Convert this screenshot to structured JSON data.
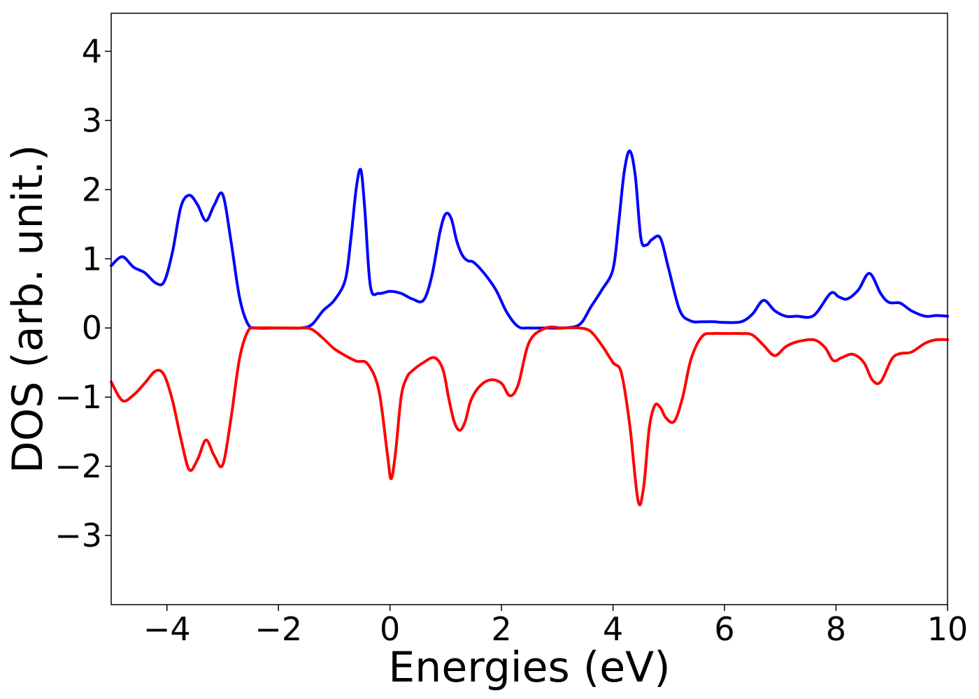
{
  "chart_data": {
    "type": "line",
    "title": "",
    "xlabel": "Energies (eV)",
    "ylabel": "DOS (arb. unit.)",
    "xlim": [
      -5,
      10
    ],
    "ylim": [
      -4,
      4.55
    ],
    "xticks": [
      -4,
      -2,
      0,
      2,
      4,
      6,
      8,
      10
    ],
    "xtick_labels": [
      "−4",
      "−2",
      "0",
      "2",
      "4",
      "6",
      "8",
      "10"
    ],
    "yticks": [
      -3,
      -2,
      -1,
      0,
      1,
      2,
      3,
      4
    ],
    "ytick_labels": [
      "−3",
      "−2",
      "−1",
      "0",
      "1",
      "2",
      "3",
      "4"
    ],
    "grid": false,
    "series": [
      {
        "color": "#0000ff",
        "x": [
          -5.0,
          -4.8,
          -4.6,
          -4.4,
          -4.2,
          -4.05,
          -3.9,
          -3.75,
          -3.6,
          -3.45,
          -3.3,
          -3.15,
          -3.0,
          -2.85,
          -2.7,
          -2.55,
          -2.4,
          -2.0,
          -1.6,
          -1.4,
          -1.2,
          -1.0,
          -0.8,
          -0.7,
          -0.6,
          -0.52,
          -0.45,
          -0.35,
          -0.2,
          0.0,
          0.2,
          0.4,
          0.6,
          0.75,
          0.9,
          1.0,
          1.1,
          1.2,
          1.3,
          1.4,
          1.5,
          1.7,
          1.9,
          2.1,
          2.3,
          2.5,
          2.8,
          3.1,
          3.4,
          3.6,
          3.8,
          4.0,
          4.1,
          4.2,
          4.3,
          4.4,
          4.5,
          4.6,
          4.7,
          4.85,
          5.0,
          5.2,
          5.4,
          5.6,
          5.8,
          6.0,
          6.3,
          6.5,
          6.7,
          6.9,
          7.1,
          7.3,
          7.6,
          7.9,
          8.05,
          8.2,
          8.4,
          8.6,
          8.8,
          8.95,
          9.15,
          9.35,
          9.6,
          9.8,
          10.0
        ],
        "values": [
          0.9,
          1.03,
          0.88,
          0.8,
          0.65,
          0.67,
          1.1,
          1.75,
          1.92,
          1.78,
          1.55,
          1.78,
          1.93,
          1.25,
          0.45,
          0.06,
          0.0,
          0.0,
          0.0,
          0.05,
          0.25,
          0.4,
          0.7,
          1.3,
          2.05,
          2.28,
          1.7,
          0.6,
          0.5,
          0.53,
          0.5,
          0.42,
          0.4,
          0.75,
          1.4,
          1.65,
          1.58,
          1.25,
          1.05,
          0.97,
          0.95,
          0.78,
          0.55,
          0.22,
          0.02,
          0.0,
          0.0,
          0.0,
          0.05,
          0.3,
          0.55,
          0.85,
          1.5,
          2.25,
          2.56,
          2.2,
          1.3,
          1.2,
          1.28,
          1.3,
          0.85,
          0.25,
          0.1,
          0.09,
          0.09,
          0.08,
          0.09,
          0.2,
          0.4,
          0.25,
          0.17,
          0.17,
          0.18,
          0.5,
          0.45,
          0.42,
          0.55,
          0.79,
          0.5,
          0.37,
          0.36,
          0.25,
          0.17,
          0.18,
          0.17
        ]
      },
      {
        "color": "#ff0000",
        "x": [
          -5.0,
          -4.8,
          -4.6,
          -4.4,
          -4.2,
          -4.05,
          -3.9,
          -3.75,
          -3.6,
          -3.45,
          -3.3,
          -3.15,
          -3.0,
          -2.85,
          -2.7,
          -2.55,
          -2.4,
          -2.0,
          -1.6,
          -1.4,
          -1.2,
          -1.0,
          -0.8,
          -0.6,
          -0.4,
          -0.2,
          -0.05,
          0.02,
          0.1,
          0.2,
          0.3,
          0.4,
          0.6,
          0.8,
          0.95,
          1.05,
          1.15,
          1.25,
          1.35,
          1.45,
          1.6,
          1.8,
          2.0,
          2.15,
          2.3,
          2.5,
          2.8,
          3.1,
          3.4,
          3.6,
          3.8,
          4.0,
          4.15,
          4.3,
          4.45,
          4.55,
          4.65,
          4.75,
          4.85,
          4.95,
          5.1,
          5.25,
          5.4,
          5.6,
          5.8,
          6.0,
          6.3,
          6.5,
          6.7,
          6.9,
          7.1,
          7.3,
          7.6,
          7.8,
          7.95,
          8.1,
          8.3,
          8.5,
          8.65,
          8.8,
          9.0,
          9.15,
          9.35,
          9.6,
          9.8,
          10.0
        ],
        "values": [
          -0.78,
          -1.05,
          -0.97,
          -0.8,
          -0.62,
          -0.68,
          -1.05,
          -1.6,
          -2.05,
          -1.9,
          -1.62,
          -1.85,
          -1.98,
          -1.3,
          -0.45,
          -0.05,
          0.0,
          0.0,
          0.0,
          -0.02,
          -0.15,
          -0.3,
          -0.4,
          -0.48,
          -0.52,
          -0.9,
          -1.8,
          -2.18,
          -1.8,
          -1.0,
          -0.72,
          -0.62,
          -0.5,
          -0.43,
          -0.6,
          -1.0,
          -1.35,
          -1.48,
          -1.35,
          -1.05,
          -0.85,
          -0.75,
          -0.8,
          -0.98,
          -0.82,
          -0.2,
          0.0,
          0.0,
          0.0,
          -0.05,
          -0.25,
          -0.5,
          -0.65,
          -1.4,
          -2.5,
          -2.3,
          -1.45,
          -1.12,
          -1.15,
          -1.3,
          -1.35,
          -1.0,
          -0.45,
          -0.12,
          -0.08,
          -0.08,
          -0.08,
          -0.1,
          -0.25,
          -0.4,
          -0.27,
          -0.2,
          -0.17,
          -0.28,
          -0.47,
          -0.43,
          -0.38,
          -0.5,
          -0.75,
          -0.78,
          -0.45,
          -0.37,
          -0.35,
          -0.22,
          -0.17,
          -0.17
        ]
      }
    ]
  }
}
